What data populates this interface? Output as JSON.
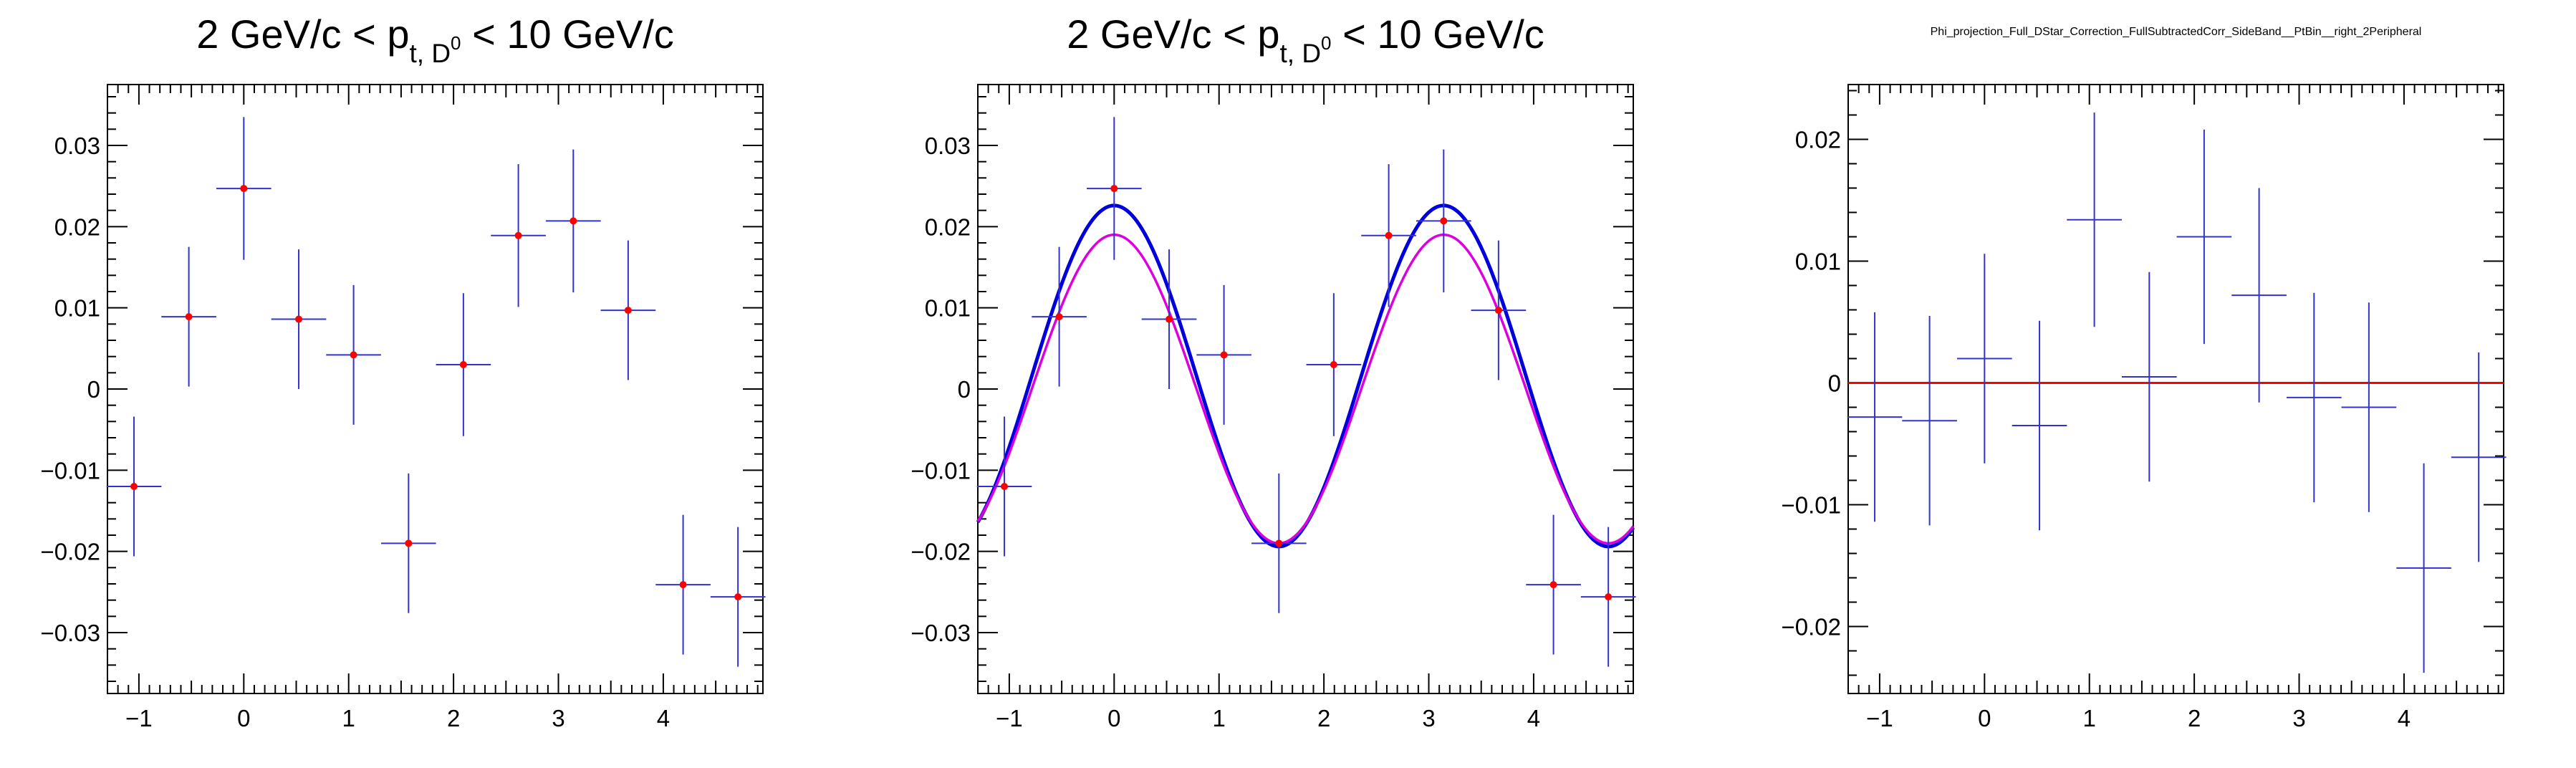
{
  "chart_data": [
    {
      "type": "scatter",
      "title_parts": {
        "main": "2 GeV/c < p",
        "sub": "t, D",
        "sup": "0",
        "tail": " < 10 GeV/c"
      },
      "xlim": [
        -1.3,
        4.95
      ],
      "ylim": [
        -0.0375,
        0.0375
      ],
      "x_ticks": [
        -1,
        0,
        1,
        2,
        3,
        4
      ],
      "y_ticks": [
        -0.03,
        -0.02,
        -0.01,
        0,
        0.01,
        0.02,
        0.03
      ],
      "x_tick_labels": [
        "−1",
        "0",
        "1",
        "2",
        "3",
        "4"
      ],
      "y_tick_labels": [
        "−0.03",
        "−0.02",
        "−0.01",
        "0",
        "0.01",
        "0.02",
        "0.03"
      ],
      "grid": false,
      "x_half_width": 0.2618,
      "points": [
        {
          "x": -1.047,
          "y": -0.012,
          "err": 0.0086
        },
        {
          "x": -0.524,
          "y": 0.0089,
          "err": 0.0086
        },
        {
          "x": 0.0,
          "y": 0.0247,
          "err": 0.0088
        },
        {
          "x": 0.524,
          "y": 0.0086,
          "err": 0.0086
        },
        {
          "x": 1.047,
          "y": 0.0042,
          "err": 0.0086
        },
        {
          "x": 1.571,
          "y": -0.019,
          "err": 0.0086
        },
        {
          "x": 2.094,
          "y": 0.003,
          "err": 0.0088
        },
        {
          "x": 2.618,
          "y": 0.0189,
          "err": 0.0088
        },
        {
          "x": 3.142,
          "y": 0.0207,
          "err": 0.0088
        },
        {
          "x": 3.665,
          "y": 0.0097,
          "err": 0.0086
        },
        {
          "x": 4.189,
          "y": -0.0241,
          "err": 0.0086
        },
        {
          "x": 4.712,
          "y": -0.0256,
          "err": 0.0086
        }
      ],
      "colors": {
        "marker": "#ff0000",
        "error_bar": "#3333cc"
      }
    },
    {
      "type": "scatter",
      "title_parts": {
        "main": "2 GeV/c < p",
        "sub": "t, D",
        "sup": "0",
        "tail": " < 10 GeV/c"
      },
      "xlim": [
        -1.3,
        4.95
      ],
      "ylim": [
        -0.0375,
        0.0375
      ],
      "x_ticks": [
        -1,
        0,
        1,
        2,
        3,
        4
      ],
      "y_ticks": [
        -0.03,
        -0.02,
        -0.01,
        0,
        0.01,
        0.02,
        0.03
      ],
      "x_tick_labels": [
        "−1",
        "0",
        "1",
        "2",
        "3",
        "4"
      ],
      "y_tick_labels": [
        "−0.03",
        "−0.02",
        "−0.01",
        "0",
        "0.01",
        "0.02",
        "0.03"
      ],
      "grid": false,
      "x_half_width": 0.2618,
      "points": [
        {
          "x": -1.047,
          "y": -0.012,
          "err": 0.0086
        },
        {
          "x": -0.524,
          "y": 0.0089,
          "err": 0.0086
        },
        {
          "x": 0.0,
          "y": 0.0247,
          "err": 0.0088
        },
        {
          "x": 0.524,
          "y": 0.0086,
          "err": 0.0086
        },
        {
          "x": 1.047,
          "y": 0.0042,
          "err": 0.0086
        },
        {
          "x": 1.571,
          "y": -0.019,
          "err": 0.0086
        },
        {
          "x": 2.094,
          "y": 0.003,
          "err": 0.0088
        },
        {
          "x": 2.618,
          "y": 0.0189,
          "err": 0.0088
        },
        {
          "x": 3.142,
          "y": 0.0207,
          "err": 0.0088
        },
        {
          "x": 3.665,
          "y": 0.0097,
          "err": 0.0086
        },
        {
          "x": 4.189,
          "y": -0.0241,
          "err": 0.0086
        },
        {
          "x": 4.712,
          "y": -0.0256,
          "err": 0.0086
        }
      ],
      "curves": [
        {
          "color": "#0000dd",
          "form": "b0 + b2*cos(2x)",
          "b0": 0.0016,
          "b2": 0.021
        },
        {
          "color": "#dd00dd",
          "form": "b0 + b2*cos(2x)",
          "b0": 0.0,
          "b2": 0.019
        }
      ],
      "colors": {
        "marker": "#ff0000",
        "error_bar": "#3333cc"
      }
    },
    {
      "type": "scatter",
      "title": "Phi_projection_Full_DStar_Correction_FullSubtractedCorr_SideBand__PtBin__right_2Peripheral",
      "xlim": [
        -1.3,
        4.95
      ],
      "ylim": [
        -0.0255,
        0.0245
      ],
      "x_ticks": [
        -1,
        0,
        1,
        2,
        3,
        4
      ],
      "y_ticks": [
        -0.02,
        -0.01,
        0,
        0.01,
        0.02
      ],
      "x_tick_labels": [
        "−1",
        "0",
        "1",
        "2",
        "3",
        "4"
      ],
      "y_tick_labels": [
        "−0.02",
        "−0.01",
        "0",
        "0.01",
        "0.02"
      ],
      "grid": false,
      "x_half_width": 0.2618,
      "points": [
        {
          "x": -1.047,
          "y": -0.0028,
          "err": 0.0086
        },
        {
          "x": -0.524,
          "y": -0.0031,
          "err": 0.0086
        },
        {
          "x": 0.0,
          "y": 0.002,
          "err": 0.0086
        },
        {
          "x": 0.524,
          "y": -0.0035,
          "err": 0.0086
        },
        {
          "x": 1.047,
          "y": 0.0134,
          "err": 0.0088
        },
        {
          "x": 1.571,
          "y": 0.0005,
          "err": 0.0086
        },
        {
          "x": 2.094,
          "y": 0.012,
          "err": 0.0088
        },
        {
          "x": 2.618,
          "y": 0.0072,
          "err": 0.0088
        },
        {
          "x": 3.142,
          "y": -0.0012,
          "err": 0.0086
        },
        {
          "x": 3.665,
          "y": -0.002,
          "err": 0.0086
        },
        {
          "x": 4.189,
          "y": -0.0152,
          "err": 0.0086
        },
        {
          "x": 4.712,
          "y": -0.0061,
          "err": 0.0086
        }
      ],
      "reference_line": {
        "y": 0,
        "color": "#ff0000"
      },
      "colors": {
        "error_bar": "#3333cc"
      }
    }
  ]
}
